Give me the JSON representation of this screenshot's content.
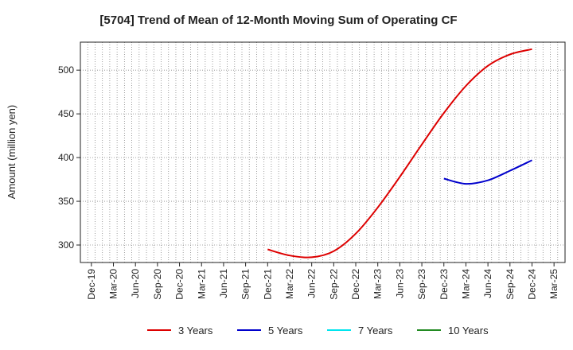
{
  "chart_data": {
    "type": "line",
    "title": "[5704]  Trend of Mean of 12-Month Moving Sum of Operating CF",
    "xlabel": "",
    "ylabel": "Amount (million yen)",
    "ylim": [
      280,
      532
    ],
    "yticks": [
      300,
      350,
      400,
      450,
      500
    ],
    "x_tick_labels": [
      "Dec-19",
      "Mar-20",
      "Jun-20",
      "Sep-20",
      "Dec-20",
      "Mar-21",
      "Jun-21",
      "Sep-21",
      "Dec-21",
      "Mar-22",
      "Jun-22",
      "Sep-22",
      "Dec-22",
      "Mar-23",
      "Jun-23",
      "Sep-23",
      "Dec-23",
      "Mar-24",
      "Jun-24",
      "Sep-24",
      "Dec-24",
      "Mar-25"
    ],
    "grid": true,
    "legend_position": "bottom",
    "series": [
      {
        "name": "3 Years",
        "color": "#dd0000",
        "points": [
          [
            "Dec-21",
            295
          ],
          [
            "Mar-22",
            288
          ],
          [
            "Jun-22",
            286
          ],
          [
            "Sep-22",
            293
          ],
          [
            "Dec-22",
            313
          ],
          [
            "Mar-23",
            343
          ],
          [
            "Jun-23",
            378
          ],
          [
            "Sep-23",
            415
          ],
          [
            "Dec-23",
            451
          ],
          [
            "Mar-24",
            482
          ],
          [
            "Jun-24",
            505
          ],
          [
            "Sep-24",
            518
          ],
          [
            "Dec-24",
            524
          ]
        ]
      },
      {
        "name": "5 Years",
        "color": "#0000cc",
        "points": [
          [
            "Dec-23",
            376
          ],
          [
            "Mar-24",
            370
          ],
          [
            "Jun-24",
            374
          ],
          [
            "Sep-24",
            385
          ],
          [
            "Dec-24",
            397
          ]
        ]
      },
      {
        "name": "7 Years",
        "color": "#00e5ee",
        "points": []
      },
      {
        "name": "10 Years",
        "color": "#228b22",
        "points": []
      }
    ]
  }
}
